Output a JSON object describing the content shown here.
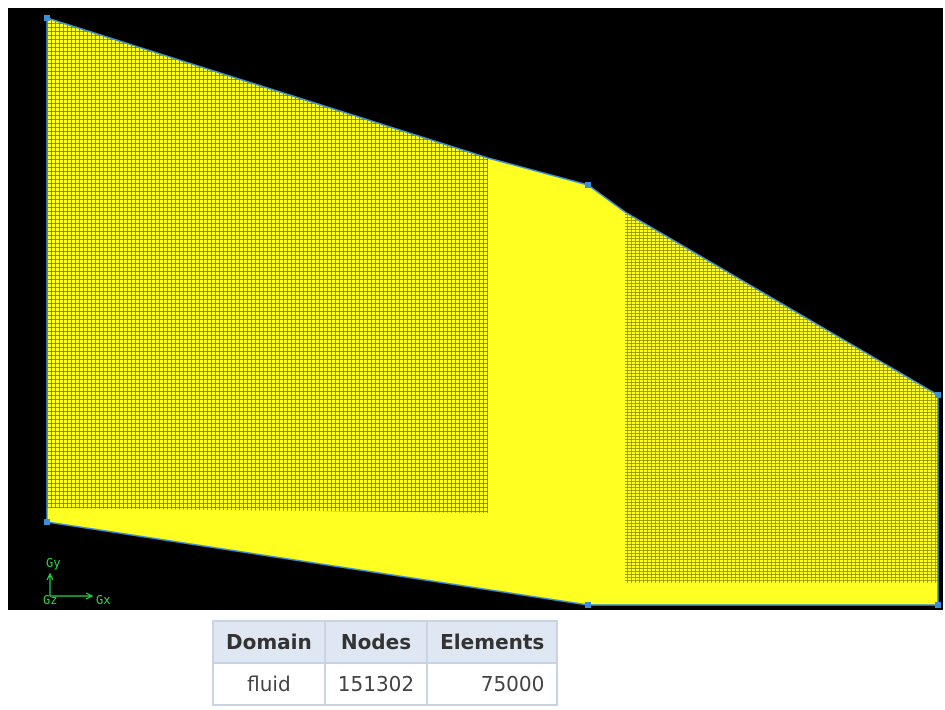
{
  "viewport": {
    "axes": {
      "y": "Gy",
      "z": "Gz",
      "x": "Gx"
    }
  },
  "table": {
    "columns": [
      "Domain",
      "Nodes",
      "Elements"
    ],
    "rows": [
      [
        "fluid",
        151302,
        75000
      ]
    ]
  }
}
